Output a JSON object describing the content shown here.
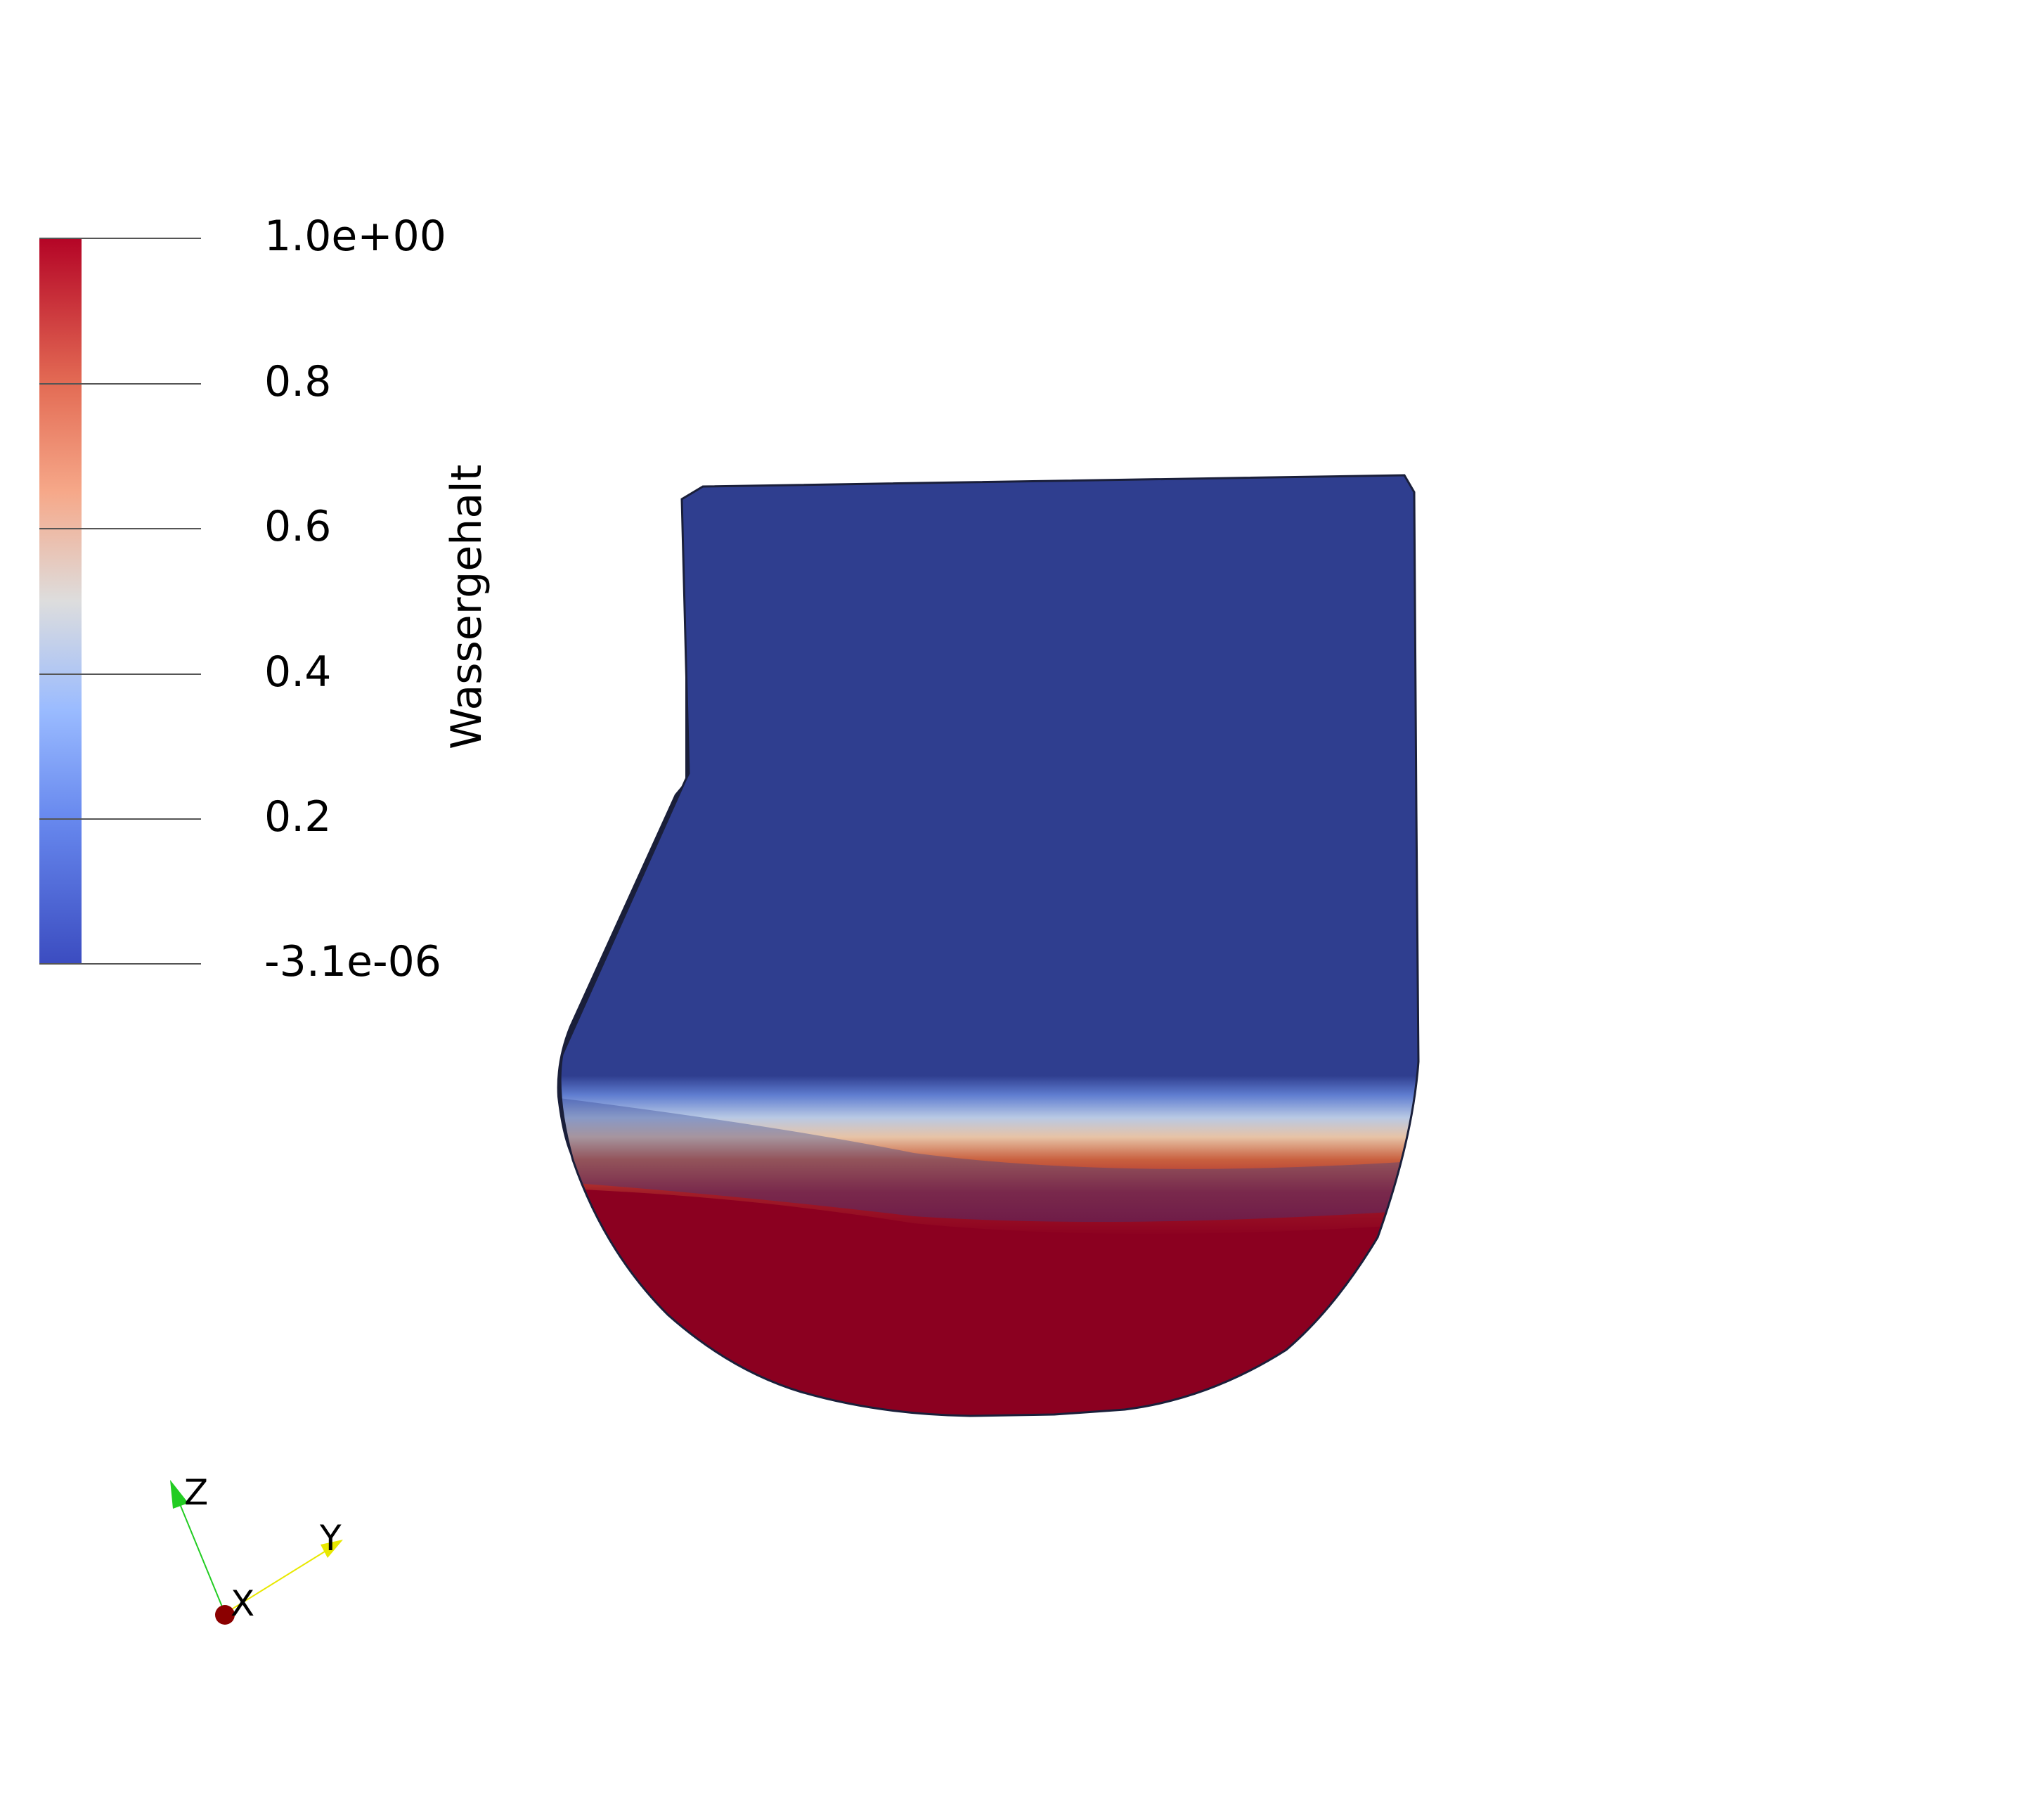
{
  "view": {
    "background": "#ffffff"
  },
  "scalar_bar": {
    "title": "Wassergehalt",
    "range": [
      -3.1e-06,
      1.0
    ],
    "colormap": "Cool to Warm",
    "colors": {
      "low": "#3b4cc0",
      "mid": "#dddddd",
      "high": "#b40426"
    },
    "labels": [
      "1.0e+00",
      "0.8",
      "0.6",
      "0.4",
      "0.2",
      "-3.1e-06"
    ]
  },
  "model": {
    "field": "Wassergehalt",
    "dry_color": "#2f3e8f",
    "wet_color": "#8b0020",
    "outline_color": "#1a1f3a"
  },
  "orientation_axes": {
    "z": {
      "label": "Z",
      "color": "#22cc22"
    },
    "y": {
      "label": "Y",
      "color": "#e8e800"
    },
    "x": {
      "label": "X",
      "color": "#8b0000"
    }
  }
}
